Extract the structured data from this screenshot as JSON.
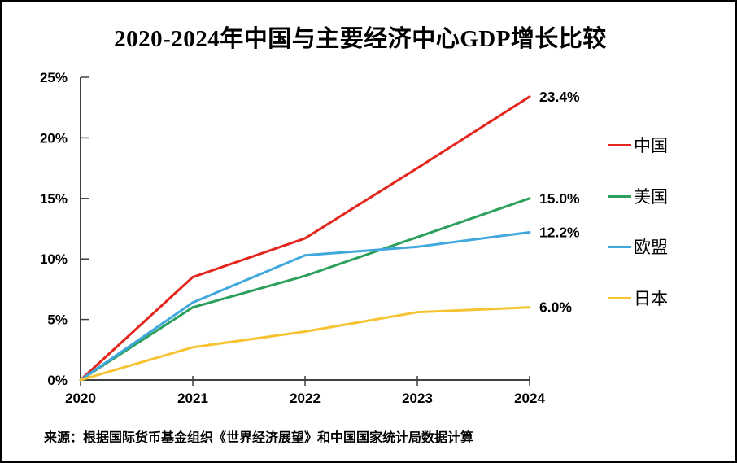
{
  "title": "2020-2024年中国与主要经济中心GDP增长比较",
  "source_note": "来源：根据国际货币基金组织《世界经济展望》和中国国家统计局数据计算",
  "chart_data": {
    "type": "line",
    "title": "2020-2024年中国与主要经济中心GDP增长比较",
    "xlabel": "",
    "ylabel": "",
    "x_labels": [
      "2020",
      "2021",
      "2022",
      "2023",
      "2024"
    ],
    "y_ticks": [
      "0%",
      "5%",
      "10%",
      "15%",
      "20%",
      "25%"
    ],
    "ylim": [
      0,
      25
    ],
    "grid": false,
    "legend_position": "right",
    "axis_color": "#404040",
    "series": [
      {
        "key": "china",
        "name": "中国",
        "color": "#e3261e",
        "values": [
          0,
          8.5,
          11.7,
          17.5,
          23.4
        ],
        "end_label": "23.4%"
      },
      {
        "key": "usa",
        "name": "美国",
        "color": "#2ba05c",
        "values": [
          0,
          6.0,
          8.6,
          11.8,
          15.0
        ],
        "end_label": "15.0%"
      },
      {
        "key": "eu",
        "name": "欧盟",
        "color": "#41a8dd",
        "values": [
          0,
          6.4,
          10.3,
          11.0,
          12.2
        ],
        "end_label": "12.2%"
      },
      {
        "key": "japan",
        "name": "日本",
        "color": "#f6c433",
        "values": [
          0,
          2.7,
          4.0,
          5.6,
          6.0
        ],
        "end_label": "6.0%"
      }
    ]
  }
}
